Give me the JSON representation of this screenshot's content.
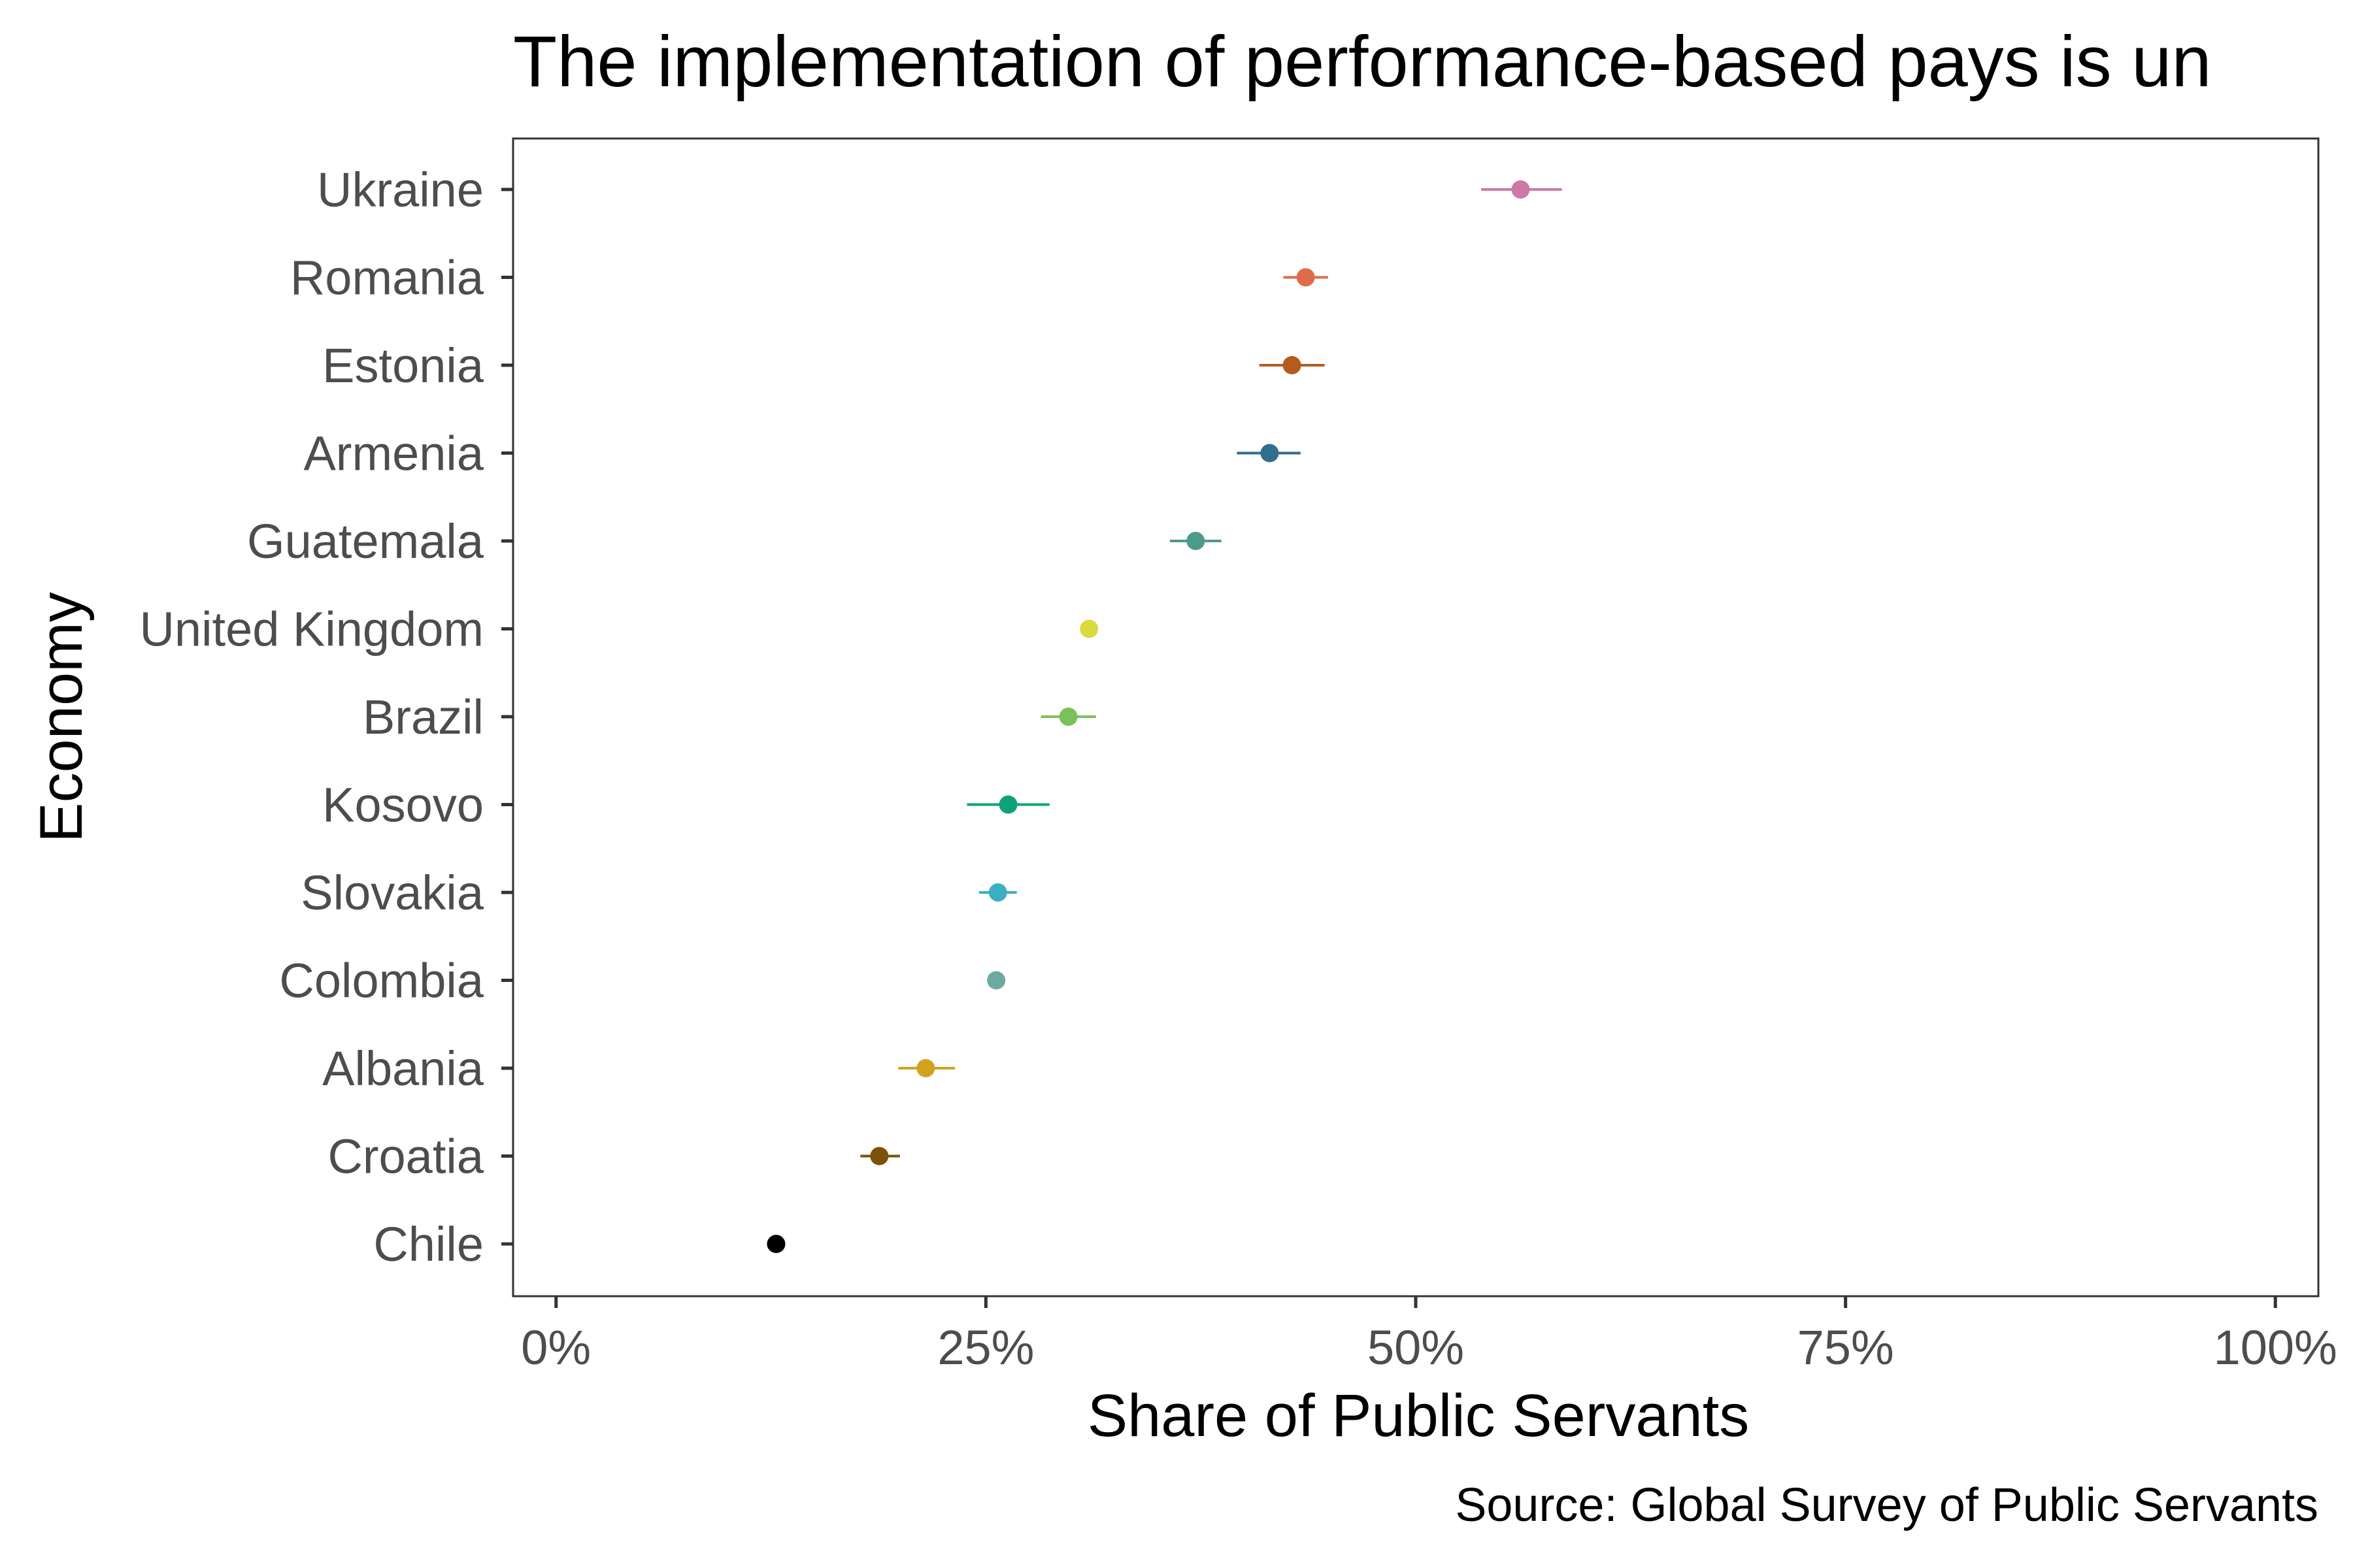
{
  "chart_data": {
    "type": "scatter",
    "title": "The implementation of performance-based pays is un",
    "xlabel": "Share of Public Servants",
    "ylabel": "Economy",
    "caption": "Source: Global Survey of Public Servants",
    "xlim": [
      -0.025,
      1.025
    ],
    "x_ticks": [
      0,
      0.25,
      0.5,
      0.75,
      1.0
    ],
    "x_tick_labels": [
      "0%",
      "25%",
      "50%",
      "75%",
      "100%"
    ],
    "grid": false,
    "legend": "none",
    "categories": [
      "Ukraine",
      "Romania",
      "Estonia",
      "Armenia",
      "Guatemala",
      "United Kingdom",
      "Brazil",
      "Kosovo",
      "Slovakia",
      "Colombia",
      "Albania",
      "Croatia",
      "Chile"
    ],
    "points": [
      {
        "economy": "Ukraine",
        "value": 0.561,
        "lower": 0.538,
        "upper": 0.585,
        "color": "#CC79A7"
      },
      {
        "economy": "Romania",
        "value": 0.436,
        "lower": 0.423,
        "upper": 0.449,
        "color": "#E06B4A"
      },
      {
        "economy": "Estonia",
        "value": 0.428,
        "lower": 0.409,
        "upper": 0.447,
        "color": "#B35C1E"
      },
      {
        "economy": "Armenia",
        "value": 0.415,
        "lower": 0.396,
        "upper": 0.433,
        "color": "#2F6E8E"
      },
      {
        "economy": "Guatemala",
        "value": 0.372,
        "lower": 0.357,
        "upper": 0.387,
        "color": "#4D9A8A"
      },
      {
        "economy": "United Kingdom",
        "value": 0.31,
        "lower": 0.308,
        "upper": 0.312,
        "color": "#D9DA3E"
      },
      {
        "economy": "Brazil",
        "value": 0.298,
        "lower": 0.282,
        "upper": 0.314,
        "color": "#7AC05B"
      },
      {
        "economy": "Kosovo",
        "value": 0.263,
        "lower": 0.239,
        "upper": 0.287,
        "color": "#0FA27A"
      },
      {
        "economy": "Slovakia",
        "value": 0.257,
        "lower": 0.246,
        "upper": 0.268,
        "color": "#3AAFC4"
      },
      {
        "economy": "Colombia",
        "value": 0.256,
        "lower": 0.254,
        "upper": 0.258,
        "color": "#6FA8A3"
      },
      {
        "economy": "Albania",
        "value": 0.215,
        "lower": 0.199,
        "upper": 0.232,
        "color": "#D1A321"
      },
      {
        "economy": "Croatia",
        "value": 0.188,
        "lower": 0.177,
        "upper": 0.2,
        "color": "#7A5208"
      },
      {
        "economy": "Chile",
        "value": 0.128,
        "lower": 0.126,
        "upper": 0.13,
        "color": "#000000"
      }
    ]
  }
}
